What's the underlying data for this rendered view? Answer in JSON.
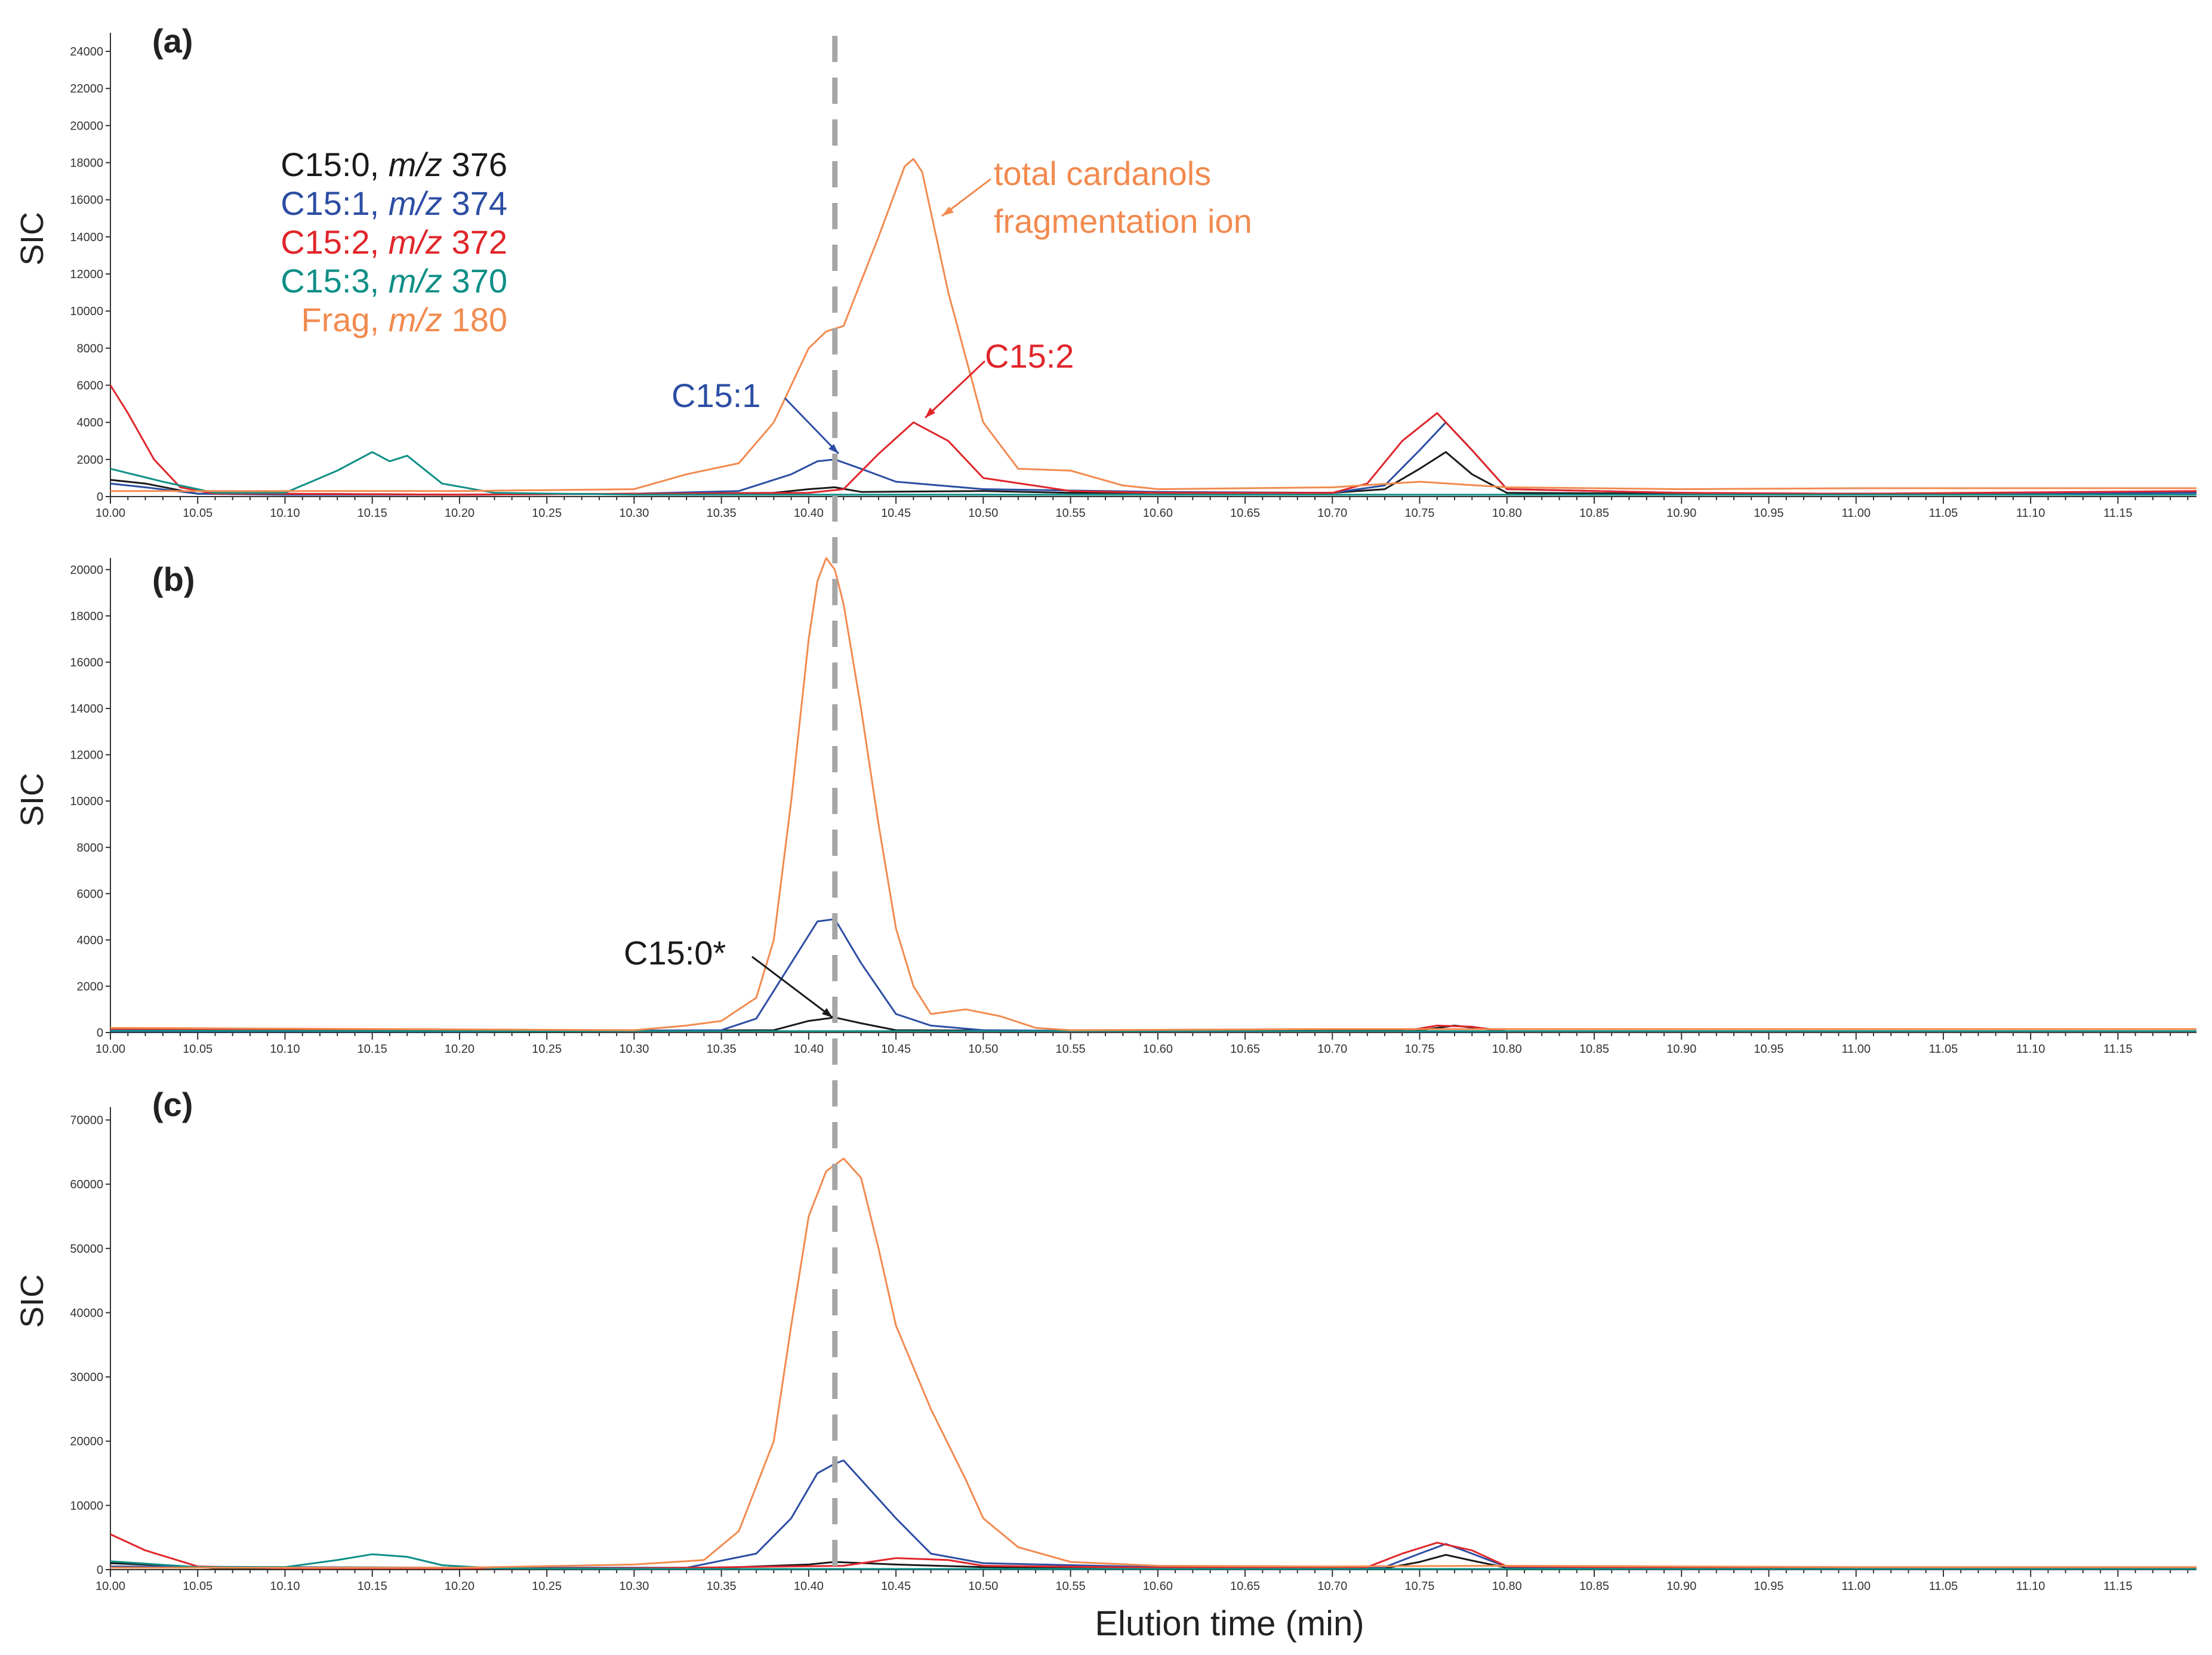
{
  "colors": {
    "c150": "#1a1a1a",
    "c151": "#2c4ea3",
    "c152": "#e0262b",
    "c153": "#0e8f87",
    "frag": "#f28a4f",
    "marker": "#a6a6a6",
    "axis": "#333333"
  },
  "xlabel": "Elution time (min)",
  "xticks": [
    "10.00",
    "10.05",
    "10.10",
    "10.15",
    "10.20",
    "10.25",
    "10.30",
    "10.35",
    "10.40",
    "10.45",
    "10.50",
    "10.55",
    "10.60",
    "10.65",
    "10.70",
    "10.75",
    "10.80",
    "10.85",
    "10.90",
    "10.95",
    "11.00",
    "11.05",
    "11.10",
    "11.15"
  ],
  "legend": [
    {
      "name": "C15:0",
      "sep": ", ",
      "mz": "m/z",
      "value": " 376",
      "color_key": "c150"
    },
    {
      "name": "C15:1",
      "sep": ", ",
      "mz": "m/z",
      "value": " 374",
      "color_key": "c151"
    },
    {
      "name": "C15:2",
      "sep": ", ",
      "mz": "m/z",
      "value": " 372",
      "color_key": "c152"
    },
    {
      "name": "C15:3",
      "sep": ", ",
      "mz": "m/z",
      "value": " 370",
      "color_key": "c153"
    },
    {
      "name": "Frag",
      "sep": ", ",
      "mz": "m/z",
      "value": " 180",
      "color_key": "frag"
    }
  ],
  "annotations": {
    "frag_line1": "total cardanols",
    "frag_line2": "fragmentation ion",
    "c151": "C15:1",
    "c152": "C15:2",
    "c150": "C15:0*"
  },
  "chart_data": [
    {
      "type": "line",
      "panel": "(a)",
      "ylabel": "SIC",
      "xlim": [
        10.0,
        11.195
      ],
      "ylim": [
        0,
        25000
      ],
      "yticks": [
        0,
        2000,
        4000,
        6000,
        8000,
        10000,
        12000,
        14000,
        16000,
        18000,
        20000,
        22000,
        24000
      ],
      "ytick_labels": [
        "0",
        "2000",
        "4000",
        "6000",
        "8000",
        "10000",
        "12000",
        "14000",
        "16000",
        "18000",
        "20000",
        "22000",
        "24000"
      ],
      "marker_x": 10.415,
      "series": [
        {
          "name": "C15:0",
          "color_key": "c150",
          "x": [
            10.0,
            10.02,
            10.05,
            10.1,
            10.2,
            10.3,
            10.38,
            10.4,
            10.415,
            10.43,
            10.5,
            10.55,
            10.6,
            10.7,
            10.73,
            10.75,
            10.765,
            10.78,
            10.8,
            10.9,
            11.0,
            11.1,
            11.195
          ],
          "y": [
            900,
            700,
            150,
            150,
            100,
            150,
            200,
            400,
            500,
            250,
            300,
            200,
            200,
            200,
            400,
            1500,
            2400,
            1200,
            200,
            150,
            150,
            200,
            250
          ]
        },
        {
          "name": "C15:1",
          "color_key": "c151",
          "x": [
            10.0,
            10.02,
            10.05,
            10.1,
            10.2,
            10.3,
            10.36,
            10.39,
            10.405,
            10.415,
            10.43,
            10.45,
            10.5,
            10.6,
            10.7,
            10.73,
            10.75,
            10.765,
            10.78,
            10.8,
            10.9,
            11.0,
            11.195
          ],
          "y": [
            700,
            500,
            150,
            100,
            100,
            150,
            300,
            1200,
            1900,
            2000,
            1500,
            800,
            400,
            250,
            200,
            600,
            2500,
            4000,
            2500,
            400,
            200,
            150,
            200
          ]
        },
        {
          "name": "C15:2",
          "color_key": "c152",
          "x": [
            10.0,
            10.01,
            10.025,
            10.04,
            10.06,
            10.1,
            10.2,
            10.3,
            10.4,
            10.42,
            10.44,
            10.46,
            10.48,
            10.5,
            10.55,
            10.6,
            10.7,
            10.72,
            10.74,
            10.76,
            10.78,
            10.8,
            10.9,
            11.0,
            11.195
          ],
          "y": [
            6000,
            4500,
            2000,
            500,
            150,
            150,
            100,
            150,
            200,
            400,
            2300,
            4000,
            3000,
            1000,
            300,
            200,
            200,
            700,
            3000,
            4500,
            2500,
            400,
            200,
            150,
            300
          ]
        },
        {
          "name": "C15:3",
          "color_key": "c153",
          "x": [
            10.0,
            10.03,
            10.06,
            10.1,
            10.13,
            10.15,
            10.16,
            10.17,
            10.19,
            10.22,
            10.3,
            10.4,
            10.5,
            10.6,
            10.7,
            10.8,
            10.9,
            11.0,
            11.195
          ],
          "y": [
            1500,
            800,
            200,
            200,
            1400,
            2400,
            1900,
            2200,
            700,
            200,
            100,
            100,
            100,
            100,
            100,
            100,
            100,
            100,
            100
          ]
        },
        {
          "name": "Frag",
          "color_key": "frag",
          "x": [
            10.0,
            10.1,
            10.2,
            10.3,
            10.33,
            10.36,
            10.38,
            10.4,
            10.41,
            10.42,
            10.44,
            10.455,
            10.46,
            10.465,
            10.48,
            10.5,
            10.52,
            10.55,
            10.58,
            10.6,
            10.7,
            10.75,
            10.8,
            10.9,
            11.0,
            11.1,
            11.195
          ],
          "y": [
            300,
            300,
            300,
            400,
            1200,
            1800,
            4000,
            8000,
            8900,
            9200,
            14000,
            17800,
            18200,
            17500,
            11000,
            4000,
            1500,
            1400,
            600,
            400,
            500,
            800,
            500,
            400,
            450,
            450,
            450
          ]
        }
      ]
    },
    {
      "type": "line",
      "panel": "(b)",
      "ylabel": "SIC",
      "xlim": [
        10.0,
        11.195
      ],
      "ylim": [
        0,
        20500
      ],
      "yticks": [
        0,
        2000,
        4000,
        6000,
        8000,
        10000,
        12000,
        14000,
        16000,
        18000,
        20000
      ],
      "ytick_labels": [
        "0",
        "2000",
        "4000",
        "6000",
        "8000",
        "10000",
        "12000",
        "14000",
        "16000",
        "18000",
        "20000"
      ],
      "marker_x": 10.415,
      "series": [
        {
          "name": "C15:0",
          "color_key": "c150",
          "x": [
            10.0,
            10.2,
            10.38,
            10.4,
            10.415,
            10.43,
            10.45,
            10.6,
            10.75,
            10.77,
            10.8,
            11.195
          ],
          "y": [
            50,
            50,
            100,
            500,
            650,
            400,
            100,
            50,
            100,
            300,
            50,
            50
          ]
        },
        {
          "name": "C15:1",
          "color_key": "c151",
          "x": [
            10.0,
            10.2,
            10.35,
            10.37,
            10.39,
            10.405,
            10.415,
            10.43,
            10.45,
            10.47,
            10.5,
            10.6,
            11.195
          ],
          "y": [
            50,
            50,
            100,
            600,
            3000,
            4800,
            4900,
            3000,
            800,
            300,
            100,
            50,
            50
          ]
        },
        {
          "name": "C15:2",
          "color_key": "c152",
          "x": [
            10.0,
            10.3,
            10.5,
            10.74,
            10.76,
            10.78,
            10.8,
            11.195
          ],
          "y": [
            150,
            50,
            50,
            50,
            300,
            250,
            50,
            50
          ]
        },
        {
          "name": "C15:3",
          "color_key": "c153",
          "x": [
            10.0,
            10.2,
            10.4,
            10.6,
            10.8,
            11.0,
            11.195
          ],
          "y": [
            80,
            60,
            60,
            60,
            60,
            60,
            60
          ]
        },
        {
          "name": "Frag",
          "color_key": "frag",
          "x": [
            10.0,
            10.3,
            10.33,
            10.35,
            10.37,
            10.38,
            10.39,
            10.4,
            10.405,
            10.41,
            10.415,
            10.42,
            10.43,
            10.44,
            10.45,
            10.46,
            10.47,
            10.49,
            10.51,
            10.53,
            10.55,
            10.7,
            10.9,
            11.195
          ],
          "y": [
            200,
            100,
            300,
            500,
            1500,
            4000,
            10000,
            17000,
            19500,
            20500,
            20000,
            18500,
            14000,
            9000,
            4500,
            2000,
            800,
            1000,
            700,
            200,
            100,
            150,
            150,
            150
          ]
        }
      ]
    },
    {
      "type": "line",
      "panel": "(c)",
      "ylabel": "SIC",
      "xlim": [
        10.0,
        11.195
      ],
      "ylim": [
        0,
        72000
      ],
      "yticks": [
        0,
        10000,
        20000,
        30000,
        40000,
        50000,
        60000,
        70000
      ],
      "ytick_labels": [
        "0",
        "10000",
        "20000",
        "30000",
        "40000",
        "50000",
        "60000",
        "70000"
      ],
      "marker_x": 10.415,
      "series": [
        {
          "name": "C15:0",
          "color_key": "c150",
          "x": [
            10.0,
            10.03,
            10.06,
            10.1,
            10.2,
            10.35,
            10.4,
            10.415,
            10.45,
            10.5,
            10.6,
            10.73,
            10.75,
            10.765,
            10.78,
            10.8,
            10.9,
            11.195
          ],
          "y": [
            1000,
            700,
            200,
            200,
            200,
            300,
            800,
            1200,
            800,
            400,
            200,
            200,
            1200,
            2300,
            1400,
            300,
            200,
            200
          ]
        },
        {
          "name": "C15:1",
          "color_key": "c151",
          "x": [
            10.0,
            10.2,
            10.33,
            10.37,
            10.39,
            10.405,
            10.415,
            10.42,
            10.43,
            10.45,
            10.47,
            10.5,
            10.6,
            10.73,
            10.75,
            10.765,
            10.78,
            10.8,
            10.9,
            11.195
          ],
          "y": [
            500,
            300,
            300,
            2500,
            8000,
            15000,
            16500,
            17000,
            14000,
            8000,
            2500,
            1000,
            400,
            400,
            2500,
            4000,
            2500,
            400,
            300,
            300
          ]
        },
        {
          "name": "C15:2",
          "color_key": "c152",
          "x": [
            10.0,
            10.02,
            10.05,
            10.1,
            10.3,
            10.42,
            10.45,
            10.48,
            10.5,
            10.6,
            10.72,
            10.74,
            10.76,
            10.78,
            10.8,
            10.9,
            11.195
          ],
          "y": [
            5500,
            3000,
            500,
            200,
            200,
            600,
            1800,
            1500,
            600,
            300,
            400,
            2500,
            4200,
            3000,
            500,
            300,
            300
          ]
        },
        {
          "name": "C15:3",
          "color_key": "c153",
          "x": [
            10.0,
            10.05,
            10.1,
            10.13,
            10.15,
            10.17,
            10.19,
            10.22,
            10.3,
            10.5,
            10.7,
            10.9,
            11.195
          ],
          "y": [
            1300,
            400,
            400,
            1500,
            2400,
            2000,
            700,
            200,
            100,
            100,
            100,
            100,
            100
          ]
        },
        {
          "name": "Frag",
          "color_key": "frag",
          "x": [
            10.0,
            10.2,
            10.3,
            10.34,
            10.36,
            10.38,
            10.39,
            10.4,
            10.41,
            10.42,
            10.43,
            10.44,
            10.45,
            10.47,
            10.49,
            10.5,
            10.52,
            10.55,
            10.6,
            10.7,
            10.8,
            10.9,
            11.0,
            11.195
          ],
          "y": [
            300,
            300,
            800,
            1500,
            6000,
            20000,
            38000,
            55000,
            62000,
            64000,
            61000,
            50000,
            38000,
            25000,
            14000,
            8000,
            3500,
            1200,
            600,
            500,
            600,
            500,
            400,
            400
          ]
        }
      ]
    }
  ]
}
